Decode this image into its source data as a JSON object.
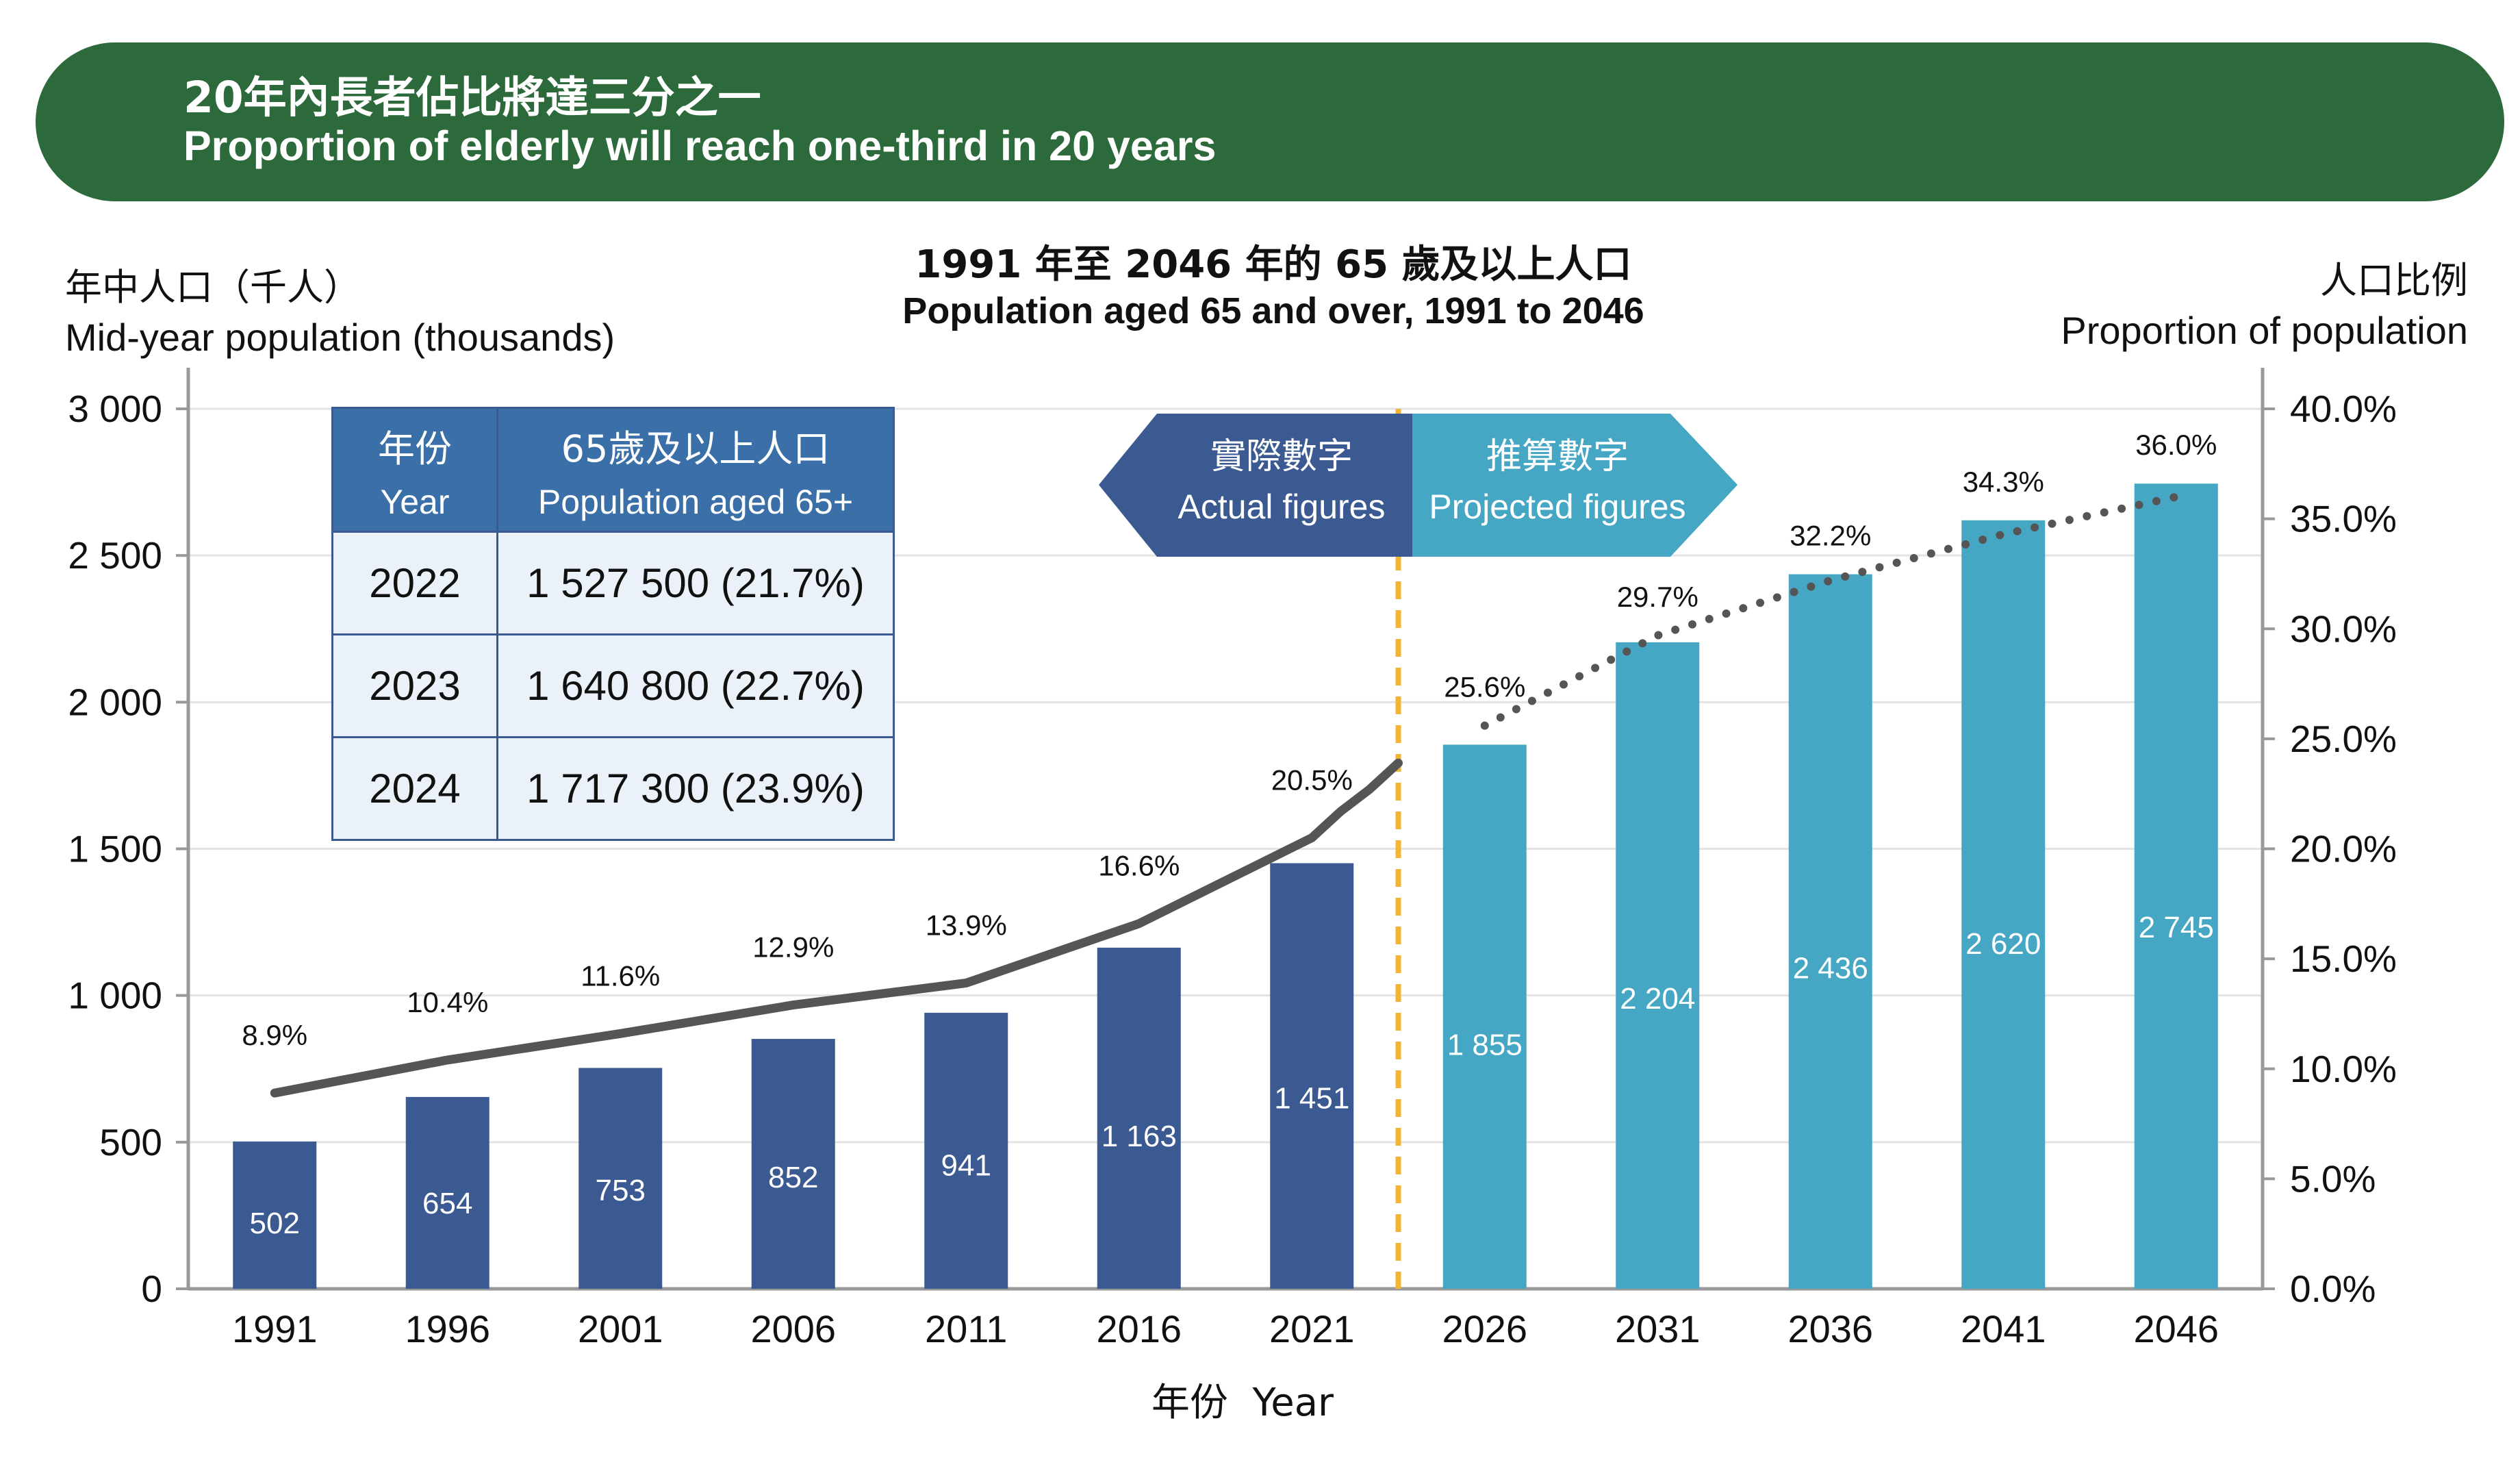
{
  "banner": {
    "title_zh": "20年內長者佔比將達三分之一",
    "title_en": "Proportion of elderly will reach one-third in 20 years"
  },
  "table": {
    "headers": [
      {
        "zh": "年份",
        "en": "Year"
      },
      {
        "zh": "65歲及以上人口",
        "en": "Population aged 65+"
      }
    ],
    "rows": [
      {
        "year": "2022",
        "value": "1 527 500 (21.7%)"
      },
      {
        "year": "2023",
        "value": "1 640 800 (22.7%)"
      },
      {
        "year": "2024",
        "value": "1 717 300 (23.9%)"
      }
    ]
  },
  "badges": {
    "actual_zh": "實際數字",
    "actual_en": "Actual figures",
    "projected_zh": "推算數字",
    "projected_en": "Projected figures"
  },
  "colors": {
    "banner": "#2c6a3b",
    "actual_bar": "#3b5a92",
    "projected_bar": "#45a7c3",
    "line": "#555555",
    "divider": "#f5b533",
    "grid": "#e3e3e3"
  },
  "chart_data": {
    "type": "bar",
    "title_zh": "1991 年至 2046 年的 65 歲及以上人口",
    "title_en": "Population aged 65 and over, 1991 to 2046",
    "ylabel_zh": "年中人口（千人）",
    "ylabel_en": "Mid-year population (thousands)",
    "y2label_zh": "人口比例",
    "y2label_en": "Proportion of population",
    "xlabel": "年份  Year",
    "categories": [
      "1991",
      "1996",
      "2001",
      "2006",
      "2011",
      "2016",
      "2021",
      "2026",
      "2031",
      "2036",
      "2041",
      "2046"
    ],
    "ylim": [
      0,
      3000
    ],
    "yticks": [
      0,
      500,
      1000,
      1500,
      2000,
      2500,
      3000
    ],
    "ytick_labels": [
      "0",
      "500",
      "1 000",
      "1 500",
      "2 000",
      "2 500",
      "3 000"
    ],
    "y2lim": [
      0,
      40
    ],
    "y2ticks": [
      0,
      5,
      10,
      15,
      20,
      25,
      30,
      35,
      40
    ],
    "y2tick_labels": [
      "0.0%",
      "5.0%",
      "10.0%",
      "15.0%",
      "20.0%",
      "25.0%",
      "30.0%",
      "35.0%",
      "40.0%"
    ],
    "actual_count": 7,
    "series": [
      {
        "name": "Population aged 65 and over (thousands)",
        "type": "bar",
        "values": [
          502,
          654,
          753,
          852,
          941,
          1163,
          1451,
          1855,
          2204,
          2436,
          2620,
          2745
        ],
        "labels": [
          "502",
          "654",
          "753",
          "852",
          "941",
          "1 163",
          "1 451",
          "1 855",
          "2 204",
          "2 436",
          "2 620",
          "2 745"
        ]
      },
      {
        "name": "Proportion of population (%)",
        "type": "line",
        "axis": "right",
        "values": [
          8.9,
          10.4,
          11.6,
          12.9,
          13.9,
          16.6,
          20.5,
          25.6,
          29.7,
          32.2,
          34.3,
          36.0
        ],
        "labels": [
          "8.9%",
          "10.4%",
          "11.6%",
          "12.9%",
          "13.9%",
          "16.6%",
          "20.5%",
          "25.6%",
          "29.7%",
          "32.2%",
          "34.3%",
          "36.0%"
        ],
        "bridge_values": [
          21.7,
          22.7,
          23.9
        ]
      }
    ]
  }
}
